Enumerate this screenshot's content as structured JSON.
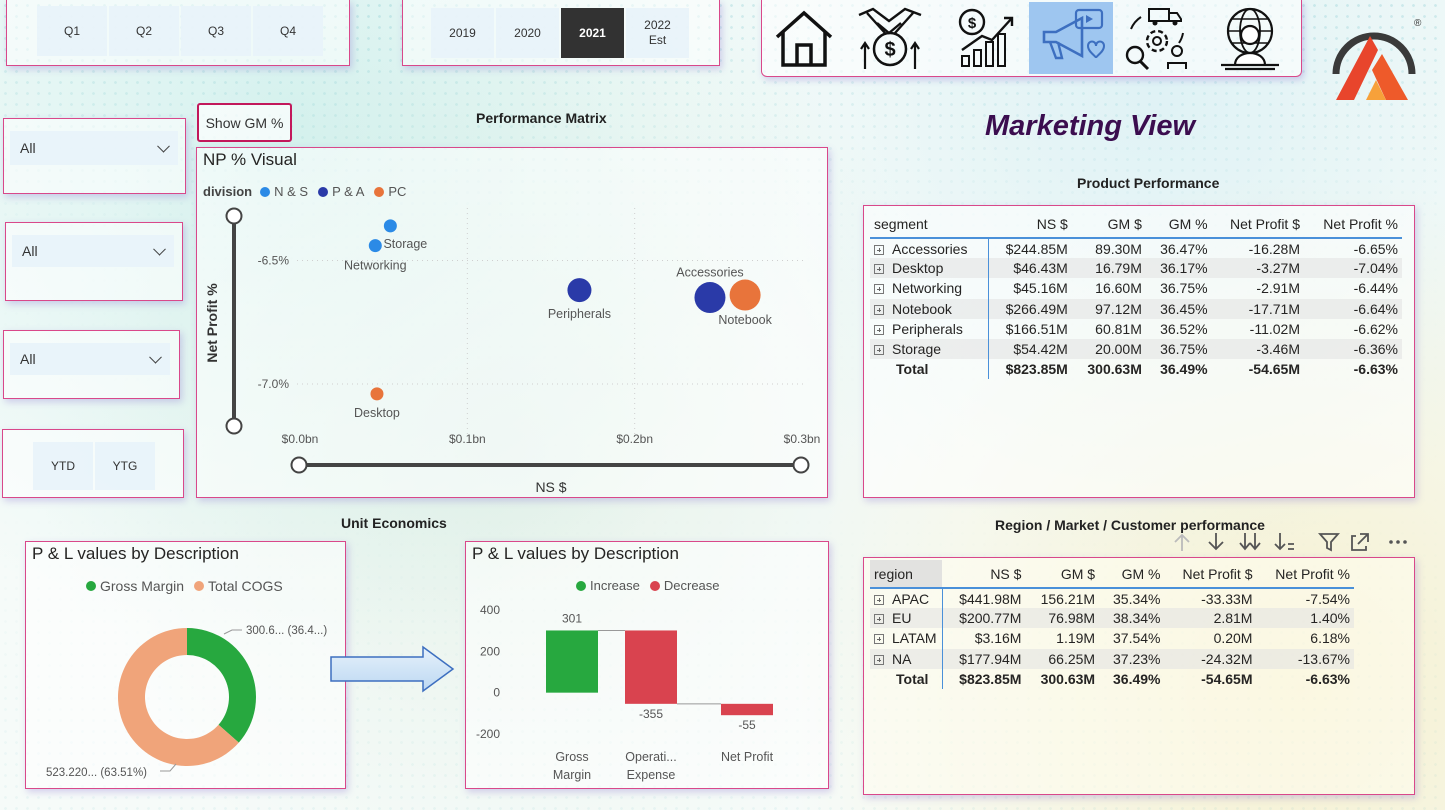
{
  "quarters": [
    "Q1",
    "Q2",
    "Q3",
    "Q4"
  ],
  "years": [
    {
      "label": "2019",
      "selected": false
    },
    {
      "label": "2020",
      "selected": false
    },
    {
      "label": "2021",
      "selected": true
    },
    {
      "label": "2022\nEst",
      "selected": false
    }
  ],
  "nav_icons": [
    "home-icon",
    "handshake-money-icon",
    "growth-chart-icon",
    "marketing-megaphone-icon",
    "supply-chain-settings-icon",
    "global-executive-icon"
  ],
  "nav_active_index": 3,
  "filters": [
    "All",
    "All",
    "All"
  ],
  "ytd_buttons": [
    "YTD",
    "YTG"
  ],
  "show_gm_label": "Show GM %",
  "page_title": "Marketing View",
  "section_titles": {
    "performance_matrix": "Performance Matrix",
    "product_performance": "Product Performance",
    "unit_economics": "Unit Economics",
    "region_performance": "Region / Market / Customer performance"
  },
  "colors": {
    "accent_border": "#d9488a",
    "title_purple": "#3b0d4f",
    "ns_blue": "#2b8ae6",
    "pa_navy": "#2a3aa8",
    "pc_orange": "#e8743b",
    "gross_margin_green": "#27a83f",
    "cogs_peach": "#f0a47a",
    "decrease_red": "#d9434f"
  },
  "np_visual": {
    "title": "NP % Visual",
    "legend_title": "division",
    "legend": [
      {
        "name": "N & S",
        "color": "#2b8ae6"
      },
      {
        "name": "P & A",
        "color": "#2a3aa8"
      },
      {
        "name": "PC",
        "color": "#e8743b"
      }
    ]
  },
  "chart_data": [
    {
      "type": "scatter",
      "title": "NP % Visual",
      "xlabel": "NS $",
      "ylabel": "Net Profit %",
      "legend_title": "division",
      "x_ticks": [
        "$0.0bn",
        "$0.1bn",
        "$0.2bn",
        "$0.3bn"
      ],
      "y_ticks": [
        "-6.5%",
        "-7.0%"
      ],
      "xlim": [
        0.0,
        0.3
      ],
      "ylim": [
        -7.17,
        -6.32
      ],
      "legend_position": "top-left",
      "points": [
        {
          "label": "Storage",
          "division": "N & S",
          "x": 0.054,
          "y": -6.36,
          "size": 1
        },
        {
          "label": "Networking",
          "division": "N & S",
          "x": 0.045,
          "y": -6.44,
          "size": 1
        },
        {
          "label": "Peripherals",
          "division": "P & A",
          "x": 0.167,
          "y": -6.62,
          "size": 2
        },
        {
          "label": "Accessories",
          "division": "P & A",
          "x": 0.245,
          "y": -6.65,
          "size": 3
        },
        {
          "label": "Notebook",
          "division": "PC",
          "x": 0.266,
          "y": -6.64,
          "size": 3
        },
        {
          "label": "Desktop",
          "division": "PC",
          "x": 0.046,
          "y": -7.04,
          "size": 1
        }
      ]
    },
    {
      "type": "pie",
      "title": "P & L values by Description",
      "legend_position": "top",
      "slices": [
        {
          "name": "Gross Margin",
          "value": 300.63,
          "label": "300.6... (36.4...)",
          "color": "#27a83f"
        },
        {
          "name": "Total COGS",
          "value": 523.22,
          "label": "523.220... (63.51%)",
          "color": "#f0a47a"
        }
      ]
    },
    {
      "type": "bar",
      "subtype": "waterfall",
      "title": "P & L values by Description",
      "legend_position": "top",
      "legend": [
        {
          "name": "Increase",
          "color": "#27a83f"
        },
        {
          "name": "Decrease",
          "color": "#d9434f"
        }
      ],
      "categories": [
        "Gross\nMargin",
        "Operati...\nExpense",
        "Net Profit"
      ],
      "values": [
        301,
        -355,
        -55
      ],
      "value_labels": [
        "301",
        "-355",
        "-55"
      ],
      "y_ticks": [
        400,
        200,
        0,
        -200
      ],
      "ylim": [
        -200,
        400
      ]
    }
  ],
  "product_table": {
    "headers": [
      "segment",
      "NS $",
      "GM $",
      "GM %",
      "Net Profit $",
      "Net Profit %"
    ],
    "rows": [
      [
        "Accessories",
        "$244.85M",
        "89.30M",
        "36.47%",
        "-16.28M",
        "-6.65%"
      ],
      [
        "Desktop",
        "$46.43M",
        "16.79M",
        "36.17%",
        "-3.27M",
        "-7.04%"
      ],
      [
        "Networking",
        "$45.16M",
        "16.60M",
        "36.75%",
        "-2.91M",
        "-6.44%"
      ],
      [
        "Notebook",
        "$266.49M",
        "97.12M",
        "36.45%",
        "-17.71M",
        "-6.64%"
      ],
      [
        "Peripherals",
        "$166.51M",
        "60.81M",
        "36.52%",
        "-11.02M",
        "-6.62%"
      ],
      [
        "Storage",
        "$54.42M",
        "20.00M",
        "36.75%",
        "-3.46M",
        "-6.36%"
      ]
    ],
    "total": [
      "Total",
      "$823.85M",
      "300.63M",
      "36.49%",
      "-54.65M",
      "-6.63%"
    ]
  },
  "region_table": {
    "headers": [
      "region",
      "NS $",
      "GM $",
      "GM %",
      "Net Profit $",
      "Net Profit %"
    ],
    "rows": [
      [
        "APAC",
        "$441.98M",
        "156.21M",
        "35.34%",
        "-33.33M",
        "-7.54%"
      ],
      [
        "EU",
        "$200.77M",
        "76.98M",
        "38.34%",
        "2.81M",
        "1.40%"
      ],
      [
        "LATAM",
        "$3.16M",
        "1.19M",
        "37.54%",
        "0.20M",
        "6.18%"
      ],
      [
        "NA",
        "$177.94M",
        "66.25M",
        "37.23%",
        "-24.32M",
        "-13.67%"
      ]
    ],
    "total": [
      "Total",
      "$823.85M",
      "300.63M",
      "36.49%",
      "-54.65M",
      "-6.63%"
    ]
  },
  "visual_toolbar": [
    "arrow-up-icon",
    "arrow-down-icon",
    "double-arrow-down-icon",
    "expand-hierarchy-icon",
    "filter-icon",
    "focus-mode-icon",
    "more-options-icon"
  ]
}
